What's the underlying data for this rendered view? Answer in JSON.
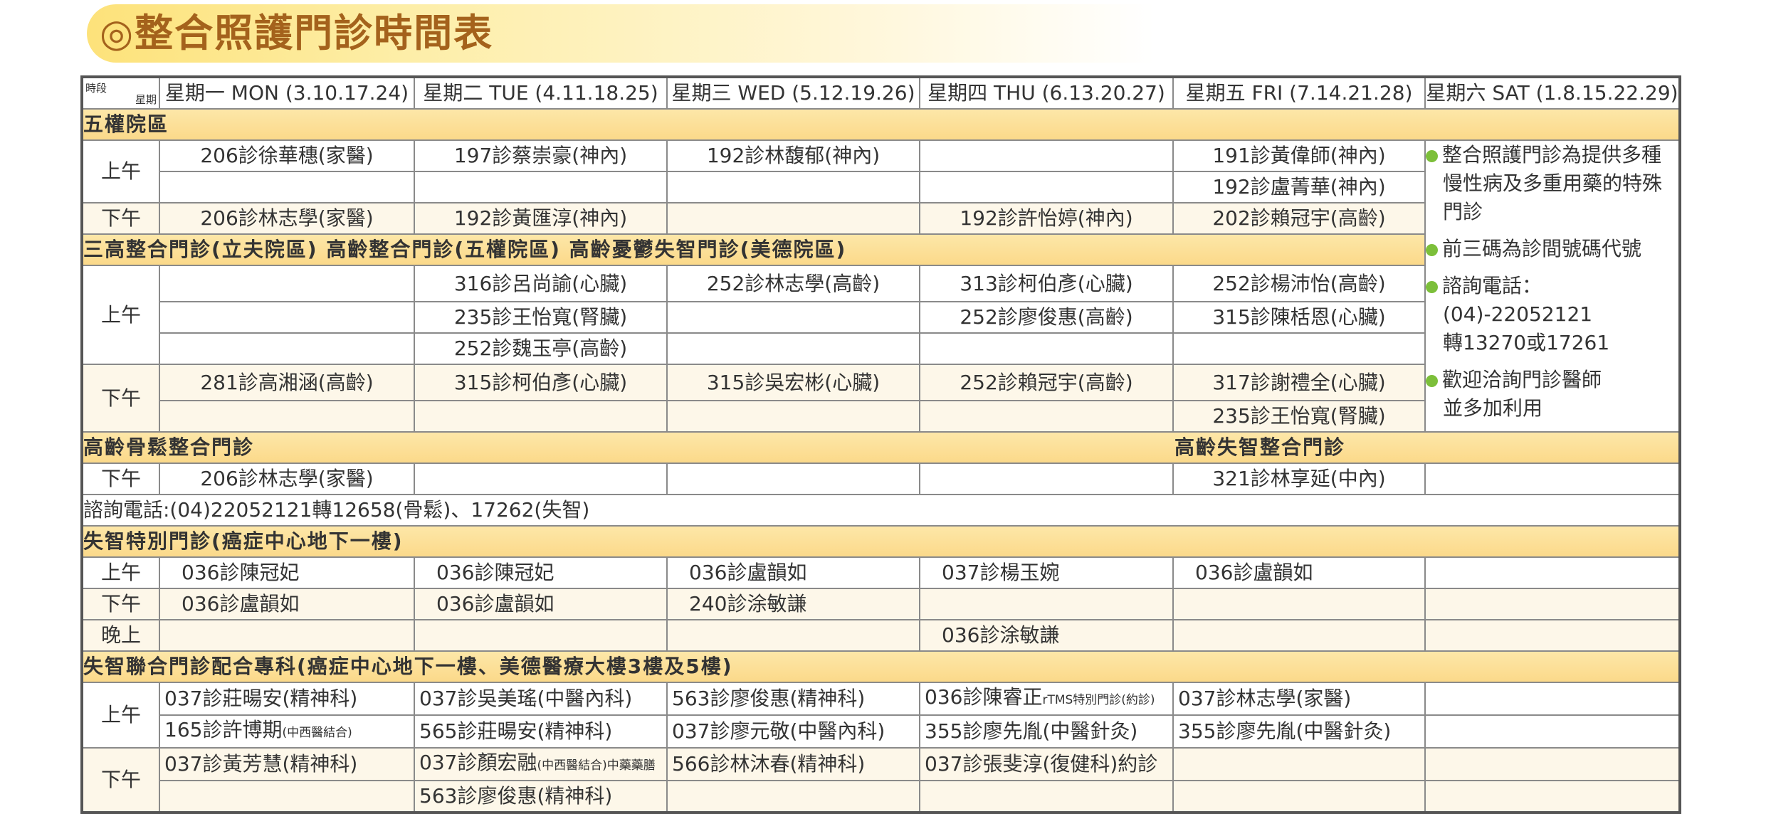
{
  "title": "◎整合照護門診時間表",
  "colors": {
    "band_text": "#c8780c",
    "band_bg": "#fbd98a",
    "title_text": "#a4621c",
    "bullet": "#7cbf3a"
  },
  "header": {
    "corner_top": "時段",
    "corner_bottom": "星期",
    "days": [
      "星期一 MON (3.10.17.24)",
      "星期二 TUE (4.11.18.25)",
      "星期三 WED (5.12.19.26)",
      "星期四 THU (6.13.20.27)",
      "星期五 FRI (7.14.21.28)",
      "星期六 SAT (1.8.15.22.29)"
    ]
  },
  "notes": [
    {
      "lines": [
        "整合照護門診為提供多種",
        "慢性病及多重用藥的特殊",
        "門診"
      ]
    },
    {
      "lines": [
        "前三碼為診間號碼代號"
      ]
    },
    {
      "lines": [
        "諮詢電話：",
        "(04)-22052121",
        "轉13270或17261"
      ]
    },
    {
      "lines": [
        "歡迎洽詢門診醫師",
        "並多加利用"
      ]
    }
  ],
  "sections": [
    {
      "title": "五權院區",
      "rows": [
        {
          "period": "上午",
          "cells": [
            "206診徐華穗(家醫)",
            "197診蔡崇豪(神內)",
            "192診林馥郁(神內)",
            "",
            "191診黃偉師(神內)"
          ]
        },
        {
          "cells": [
            "",
            "",
            "",
            "",
            "192診盧菁華(神內)"
          ]
        },
        {
          "period": "下午",
          "cells": [
            "206診林志學(家醫)",
            "192診黃匯淳(神內)",
            "",
            "192診許怡婷(神內)",
            "202診賴冠宇(高齡)"
          ]
        }
      ]
    },
    {
      "title": "三高整合門診(立夫院區) 高齡整合門診(五權院區) 高齡憂鬱失智門診(美德院區)",
      "rows": [
        {
          "period": "上午",
          "cells": [
            "",
            "316診呂尚諭(心臟)",
            "252診林志學(高齡)",
            "313診柯伯彥(心臟)",
            "252診楊沛怡(高齡)"
          ]
        },
        {
          "cells": [
            "",
            "235診王怡寬(腎臟)",
            "",
            "252診廖俊惠(高齡)",
            "315診陳栝恩(心臟)"
          ]
        },
        {
          "cells": [
            "",
            "252診魏玉亭(高齡)",
            "",
            "",
            ""
          ]
        },
        {
          "period": "下午",
          "cells": [
            "281診高湘涵(高齡)",
            "315診柯伯彥(心臟)",
            "315診吳宏彬(心臟)",
            "252診賴冠宇(高齡)",
            "317診謝禮全(心臟)"
          ]
        },
        {
          "cells": [
            "",
            "",
            "",
            "",
            "235診王怡寬(腎臟)"
          ]
        }
      ]
    },
    {
      "title": "高齡骨鬆整合門診",
      "title_right": "高齡失智整合門診",
      "rows": [
        {
          "period": "下午",
          "cells": [
            "206診林志學(家醫)",
            "",
            "",
            "",
            "321診林享延(中內)",
            ""
          ]
        }
      ],
      "phone": "諮詢電話:(04)22052121轉12658(骨鬆)、17262(失智)"
    },
    {
      "title": "失智特別門診(癌症中心地下一樓)",
      "rows": [
        {
          "period": "上午",
          "cells": [
            "036診陳冠妃",
            "036診陳冠妃",
            "036診盧韻如",
            "037診楊玉婉",
            "036診盧韻如",
            ""
          ]
        },
        {
          "period": "下午",
          "cells": [
            "036診盧韻如",
            "036診盧韻如",
            "240診涂敏謙",
            "",
            "",
            ""
          ]
        },
        {
          "period": "晚上",
          "cells": [
            "",
            "",
            "",
            "036診涂敏謙",
            "",
            ""
          ]
        }
      ]
    },
    {
      "title": "失智聯合門診配合專科(癌症中心地下一樓、美德醫療大樓3樓及5樓)",
      "rows": [
        {
          "period": "上午",
          "cells": [
            "037診莊暘安(精神科)",
            "037診吳美瑤(中醫內科)",
            "563診廖俊惠(精神科)",
            {
              "main": "036診陳睿正",
              "small": "rTMS特別門診(約診)"
            },
            "037診林志學(家醫)",
            ""
          ]
        },
        {
          "cells": [
            {
              "main": "165診許博期",
              "small": "(中西醫結合)"
            },
            "565診莊暘安(精神科)",
            "037診廖元敬(中醫內科)",
            "355診廖先胤(中醫針灸)",
            "355診廖先胤(中醫針灸)",
            ""
          ]
        },
        {
          "period": "下午",
          "cells": [
            "037診黃芳慧(精神科)",
            {
              "main": "037診顏宏融",
              "small": "(中西醫結合)中藥藥膳"
            },
            "566診林沐春(精神科)",
            "037診張斐淳(復健科)約診",
            "",
            ""
          ]
        },
        {
          "cells": [
            "",
            "563診廖俊惠(精神科)",
            "",
            "",
            "",
            ""
          ]
        }
      ]
    }
  ]
}
